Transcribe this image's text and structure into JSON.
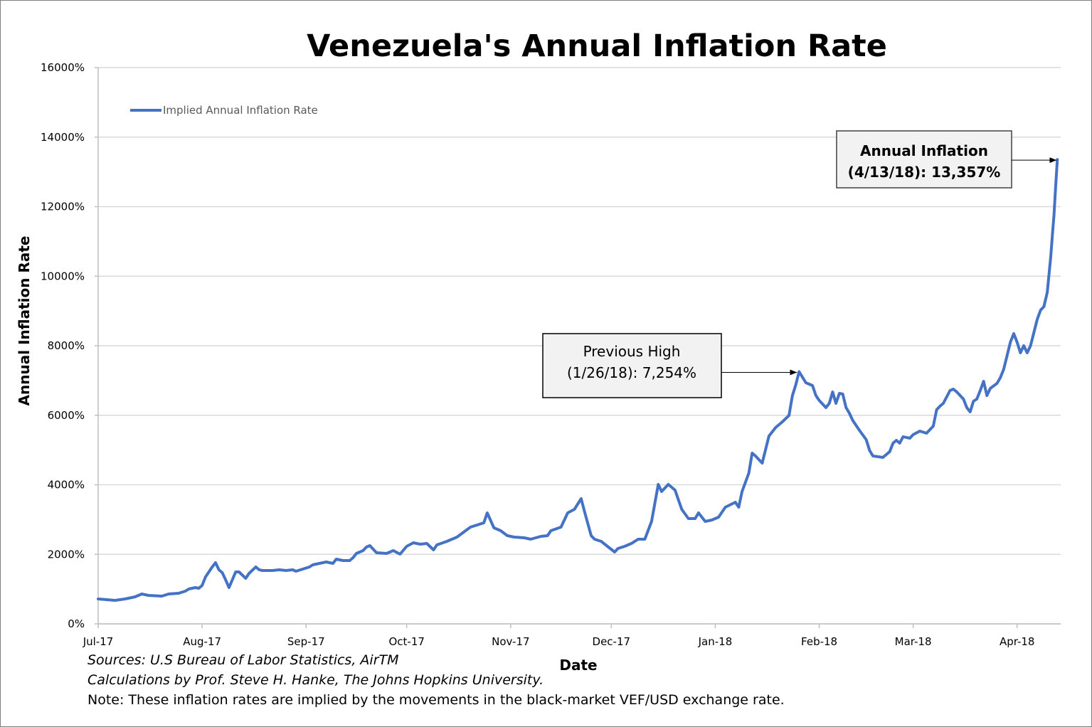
{
  "chart_data": {
    "type": "line",
    "title": "Venezuela's Annual Inflation Rate",
    "xlabel": "Date",
    "ylabel": "Annual Inflation Rate",
    "x_unit": "days since 2017-07-01",
    "xlim": [
      0,
      287
    ],
    "ylim": [
      0,
      16000
    ],
    "grid": true,
    "legend_position": "top-left",
    "y_ticks": [
      0,
      2000,
      4000,
      6000,
      8000,
      10000,
      12000,
      14000,
      16000
    ],
    "y_tick_labels": [
      "0%",
      "2000%",
      "4000%",
      "6000%",
      "8000%",
      "10000%",
      "12000%",
      "14000%",
      "16000%"
    ],
    "x_ticks": [
      0,
      31,
      62,
      92,
      123,
      153,
      184,
      215,
      243,
      274
    ],
    "x_tick_labels": [
      "Jul-17",
      "Aug-17",
      "Sep-17",
      "Oct-17",
      "Nov-17",
      "Dec-17",
      "Jan-18",
      "Feb-18",
      "Mar-18",
      "Apr-18"
    ],
    "series": [
      {
        "name": "Implied Annual Inflation Rate",
        "color": "#4472c4",
        "points": [
          [
            0,
            716
          ],
          [
            2,
            700
          ],
          [
            5,
            676
          ],
          [
            8,
            716
          ],
          [
            11,
            778
          ],
          [
            13,
            860
          ],
          [
            15,
            818
          ],
          [
            19,
            798
          ],
          [
            21,
            859
          ],
          [
            24,
            880
          ],
          [
            26,
            941
          ],
          [
            27,
            1002
          ],
          [
            29,
            1043
          ],
          [
            30,
            1023
          ],
          [
            31,
            1105
          ],
          [
            32,
            1350
          ],
          [
            34,
            1637
          ],
          [
            35,
            1760
          ],
          [
            36,
            1555
          ],
          [
            37,
            1473
          ],
          [
            38,
            1268
          ],
          [
            39,
            1043
          ],
          [
            41,
            1493
          ],
          [
            42,
            1493
          ],
          [
            44,
            1310
          ],
          [
            45,
            1453
          ],
          [
            47,
            1637
          ],
          [
            48,
            1555
          ],
          [
            49,
            1535
          ],
          [
            52,
            1535
          ],
          [
            54,
            1555
          ],
          [
            56,
            1535
          ],
          [
            58,
            1555
          ],
          [
            59,
            1514
          ],
          [
            61,
            1576
          ],
          [
            63,
            1637
          ],
          [
            64,
            1698
          ],
          [
            66,
            1739
          ],
          [
            68,
            1780
          ],
          [
            70,
            1739
          ],
          [
            71,
            1862
          ],
          [
            73,
            1821
          ],
          [
            75,
            1821
          ],
          [
            76,
            1903
          ],
          [
            77,
            2025
          ],
          [
            79,
            2107
          ],
          [
            80,
            2210
          ],
          [
            81,
            2250
          ],
          [
            83,
            2046
          ],
          [
            86,
            2025
          ],
          [
            88,
            2107
          ],
          [
            90,
            2005
          ],
          [
            92,
            2230
          ],
          [
            94,
            2332
          ],
          [
            96,
            2291
          ],
          [
            98,
            2312
          ],
          [
            100,
            2128
          ],
          [
            101,
            2271
          ],
          [
            104,
            2373
          ],
          [
            107,
            2496
          ],
          [
            111,
            2782
          ],
          [
            113,
            2843
          ],
          [
            115,
            2905
          ],
          [
            116,
            3192
          ],
          [
            118,
            2762
          ],
          [
            120,
            2680
          ],
          [
            122,
            2537
          ],
          [
            124,
            2496
          ],
          [
            127,
            2476
          ],
          [
            129,
            2435
          ],
          [
            132,
            2516
          ],
          [
            134,
            2537
          ],
          [
            135,
            2680
          ],
          [
            138,
            2782
          ],
          [
            140,
            3192
          ],
          [
            142,
            3294
          ],
          [
            144,
            3601
          ],
          [
            145,
            3233
          ],
          [
            147,
            2537
          ],
          [
            148,
            2435
          ],
          [
            150,
            2373
          ],
          [
            154,
            2066
          ],
          [
            155,
            2169
          ],
          [
            157,
            2230
          ],
          [
            159,
            2312
          ],
          [
            161,
            2435
          ],
          [
            163,
            2435
          ],
          [
            165,
            2946
          ],
          [
            167,
            4010
          ],
          [
            168,
            3806
          ],
          [
            170,
            4010
          ],
          [
            172,
            3847
          ],
          [
            174,
            3294
          ],
          [
            176,
            3028
          ],
          [
            178,
            3028
          ],
          [
            179,
            3192
          ],
          [
            181,
            2946
          ],
          [
            183,
            2987
          ],
          [
            185,
            3069
          ],
          [
            187,
            3356
          ],
          [
            190,
            3499
          ],
          [
            191,
            3356
          ],
          [
            192,
            3806
          ],
          [
            194,
            4338
          ],
          [
            195,
            4910
          ],
          [
            196,
            4829
          ],
          [
            198,
            4624
          ],
          [
            200,
            5401
          ],
          [
            202,
            5647
          ],
          [
            204,
            5811
          ],
          [
            206,
            5995
          ],
          [
            207,
            6568
          ],
          [
            208,
            6875
          ],
          [
            209,
            7254
          ],
          [
            211,
            6937
          ],
          [
            213,
            6855
          ],
          [
            214,
            6568
          ],
          [
            215,
            6425
          ],
          [
            217,
            6220
          ],
          [
            218,
            6343
          ],
          [
            219,
            6670
          ],
          [
            220,
            6343
          ],
          [
            221,
            6630
          ],
          [
            222,
            6610
          ],
          [
            223,
            6220
          ],
          [
            224,
            6056
          ],
          [
            225,
            5852
          ],
          [
            227,
            5565
          ],
          [
            229,
            5299
          ],
          [
            230,
            4992
          ],
          [
            231,
            4829
          ],
          [
            234,
            4788
          ],
          [
            236,
            4951
          ],
          [
            237,
            5197
          ],
          [
            238,
            5279
          ],
          [
            239,
            5197
          ],
          [
            240,
            5381
          ],
          [
            242,
            5340
          ],
          [
            243,
            5442
          ],
          [
            245,
            5544
          ],
          [
            247,
            5483
          ],
          [
            249,
            5688
          ],
          [
            250,
            6159
          ],
          [
            251,
            6261
          ],
          [
            252,
            6343
          ],
          [
            254,
            6711
          ],
          [
            255,
            6752
          ],
          [
            256,
            6670
          ],
          [
            258,
            6466
          ],
          [
            259,
            6220
          ],
          [
            260,
            6097
          ],
          [
            261,
            6404
          ],
          [
            262,
            6466
          ],
          [
            263,
            6711
          ],
          [
            264,
            6977
          ],
          [
            265,
            6568
          ],
          [
            266,
            6773
          ],
          [
            268,
            6916
          ],
          [
            269,
            7080
          ],
          [
            270,
            7325
          ],
          [
            272,
            8103
          ],
          [
            273,
            8348
          ],
          [
            274,
            8103
          ],
          [
            275,
            7796
          ],
          [
            276,
            8000
          ],
          [
            277,
            7796
          ],
          [
            278,
            8000
          ],
          [
            280,
            8757
          ],
          [
            281,
            9022
          ],
          [
            282,
            9125
          ],
          [
            283,
            9534
          ],
          [
            284,
            10538
          ],
          [
            284.5,
            11151
          ],
          [
            285,
            11765
          ],
          [
            285.5,
            12583
          ],
          [
            286,
            13357
          ]
        ]
      }
    ],
    "annotations": [
      {
        "line1": "Previous High",
        "line2": "(1/26/18): 7,254%",
        "target": [
          209,
          7254
        ],
        "bold": false
      },
      {
        "line1": "Annual Inflation",
        "line2": "(4/13/18): 13,357%",
        "target": [
          286,
          13357
        ],
        "bold": true
      }
    ],
    "notes": [
      "Sources: U.S Bureau of Labor Statistics, AirTM",
      "Calculations by Prof. Steve H. Hanke, The Johns Hopkins University.",
      "Note: These inflation rates are implied by the movements in the black-market VEF/USD exchange rate."
    ]
  }
}
